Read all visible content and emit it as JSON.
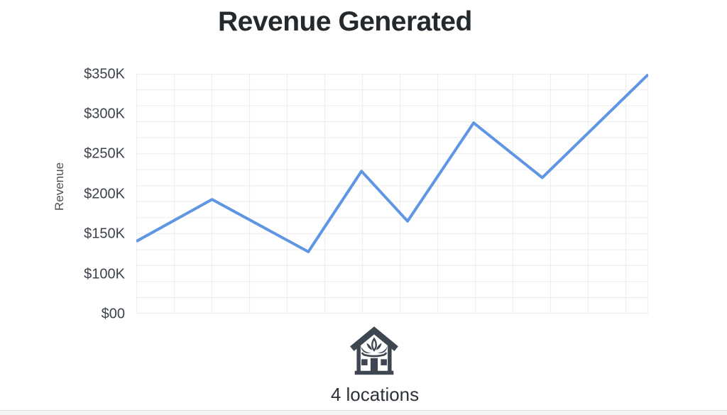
{
  "title": "Revenue Generated",
  "chart_data": {
    "type": "line",
    "title": "Revenue Generated",
    "ylabel": "Revenue",
    "xlabel": "",
    "y_ticks": [
      "$350K",
      "$300K",
      "$250K",
      "$200K",
      "$150K",
      "$100K",
      "$00"
    ],
    "y_tick_values": [
      350,
      300,
      250,
      200,
      150,
      100,
      0
    ],
    "x_ticks": [],
    "grid": true,
    "legend": "none",
    "series": [
      {
        "name": "Revenue",
        "values": [
          143,
          195,
          130,
          230,
          168,
          290,
          222,
          350
        ],
        "x_fractions": [
          0,
          0.148,
          0.336,
          0.44,
          0.53,
          0.659,
          0.793,
          1.0
        ]
      }
    ],
    "units": "USD thousands"
  },
  "footer": {
    "icon": "house-lotus-icon",
    "caption": "4 locations"
  },
  "colors": {
    "line": "#5f96e3",
    "grid": "#efefef",
    "title": "#24292e",
    "tick": "#3c4249",
    "ylabel": "#4b5157",
    "caption": "#2d3238",
    "icon": "#3d4651"
  }
}
